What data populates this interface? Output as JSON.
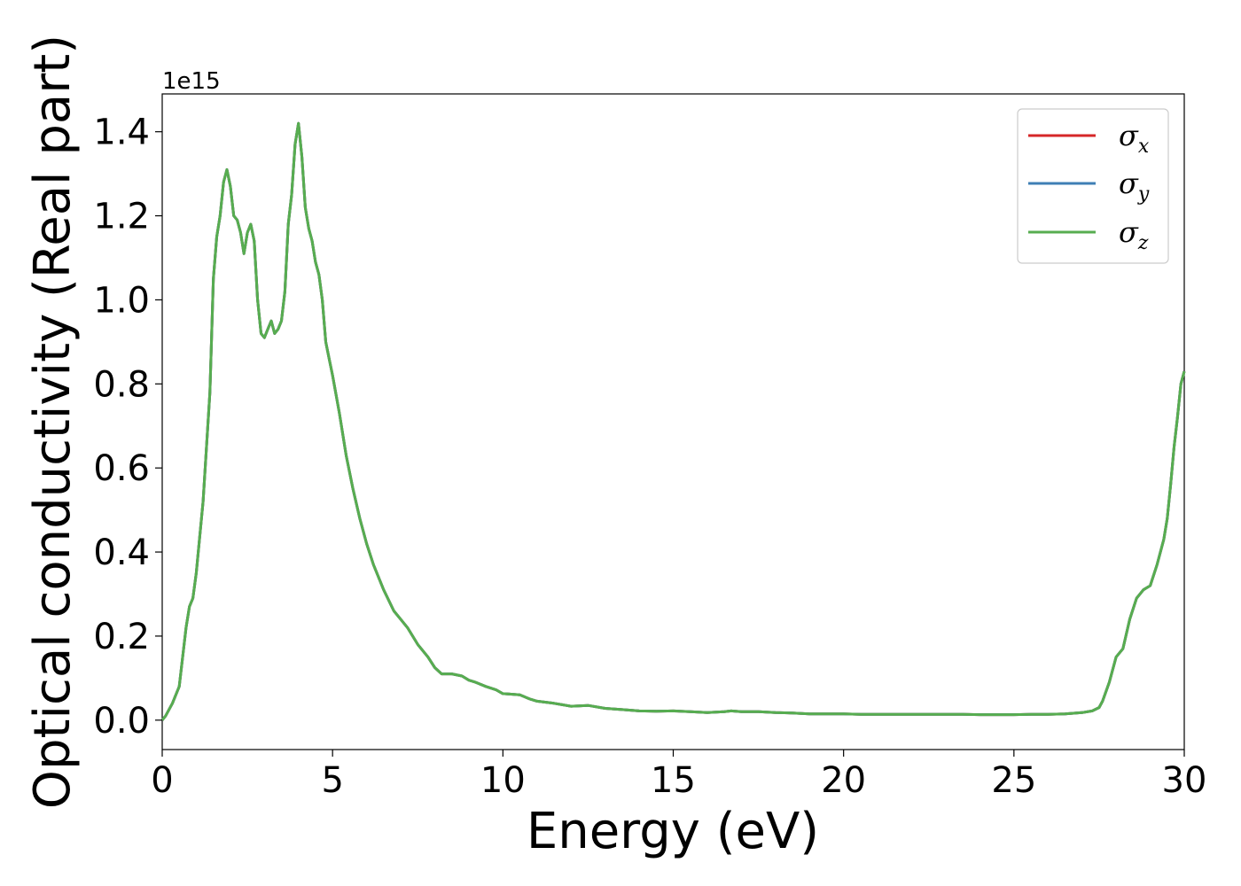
{
  "chart_data": {
    "type": "line",
    "title": "",
    "xlabel": "Energy (eV)",
    "ylabel": "Optical conductivity (Real part)",
    "y_offset_label": "1e15",
    "xlim": [
      0,
      30
    ],
    "ylim": [
      -0.07,
      1.49
    ],
    "xticks": [
      "0",
      "5",
      "10",
      "15",
      "20",
      "25",
      "30"
    ],
    "yticks": [
      "0.0",
      "0.2",
      "0.4",
      "0.6",
      "0.8",
      "1.0",
      "1.2",
      "1.4"
    ],
    "grid": false,
    "legend_position": "top-right",
    "series": [
      {
        "name": "σ",
        "subscript": "x",
        "color": "#d62728"
      },
      {
        "name": "σ",
        "subscript": "y",
        "color": "#3f7fb5"
      },
      {
        "name": "σ",
        "subscript": "z",
        "color": "#57ad50"
      }
    ],
    "x": [
      0,
      0.1,
      0.3,
      0.5,
      0.7,
      0.8,
      0.9,
      1.0,
      1.2,
      1.4,
      1.5,
      1.6,
      1.7,
      1.8,
      1.9,
      2.0,
      2.1,
      2.2,
      2.3,
      2.4,
      2.5,
      2.6,
      2.7,
      2.8,
      2.9,
      3.0,
      3.1,
      3.2,
      3.3,
      3.4,
      3.5,
      3.6,
      3.7,
      3.8,
      3.9,
      4.0,
      4.1,
      4.2,
      4.3,
      4.4,
      4.5,
      4.6,
      4.7,
      4.8,
      4.9,
      5.0,
      5.2,
      5.4,
      5.6,
      5.8,
      6.0,
      6.2,
      6.5,
      6.8,
      7.0,
      7.2,
      7.5,
      7.8,
      8.0,
      8.2,
      8.5,
      8.8,
      9.0,
      9.2,
      9.5,
      9.8,
      10.0,
      10.2,
      10.5,
      10.8,
      11.0,
      11.5,
      12.0,
      12.5,
      13.0,
      13.5,
      14.0,
      14.5,
      15.0,
      15.5,
      16.0,
      16.5,
      16.7,
      17.0,
      17.5,
      18.0,
      18.5,
      19.0,
      19.5,
      20.0,
      20.5,
      21.0,
      21.5,
      22.0,
      22.5,
      23.0,
      23.5,
      24.0,
      24.5,
      25.0,
      25.5,
      26.0,
      26.5,
      27.0,
      27.3,
      27.5,
      27.6,
      27.8,
      28.0,
      28.2,
      28.4,
      28.6,
      28.8,
      29.0,
      29.2,
      29.4,
      29.5,
      29.6,
      29.7,
      29.8,
      29.9,
      30.0
    ],
    "values": [
      0.0,
      0.01,
      0.04,
      0.08,
      0.22,
      0.27,
      0.29,
      0.35,
      0.52,
      0.78,
      1.05,
      1.15,
      1.2,
      1.28,
      1.31,
      1.27,
      1.2,
      1.19,
      1.16,
      1.11,
      1.16,
      1.18,
      1.14,
      1.0,
      0.92,
      0.91,
      0.93,
      0.95,
      0.92,
      0.93,
      0.95,
      1.02,
      1.18,
      1.25,
      1.37,
      1.42,
      1.34,
      1.22,
      1.17,
      1.14,
      1.09,
      1.06,
      1.0,
      0.9,
      0.86,
      0.82,
      0.73,
      0.63,
      0.55,
      0.48,
      0.42,
      0.37,
      0.31,
      0.26,
      0.24,
      0.22,
      0.18,
      0.15,
      0.125,
      0.11,
      0.11,
      0.105,
      0.095,
      0.09,
      0.08,
      0.072,
      0.063,
      0.062,
      0.06,
      0.05,
      0.045,
      0.04,
      0.033,
      0.035,
      0.028,
      0.025,
      0.022,
      0.021,
      0.022,
      0.02,
      0.018,
      0.02,
      0.022,
      0.02,
      0.02,
      0.018,
      0.017,
      0.015,
      0.015,
      0.015,
      0.014,
      0.014,
      0.014,
      0.014,
      0.014,
      0.014,
      0.014,
      0.013,
      0.013,
      0.013,
      0.014,
      0.014,
      0.015,
      0.018,
      0.022,
      0.03,
      0.045,
      0.09,
      0.15,
      0.17,
      0.24,
      0.29,
      0.31,
      0.32,
      0.37,
      0.43,
      0.48,
      0.56,
      0.65,
      0.72,
      0.8,
      0.83
    ]
  }
}
